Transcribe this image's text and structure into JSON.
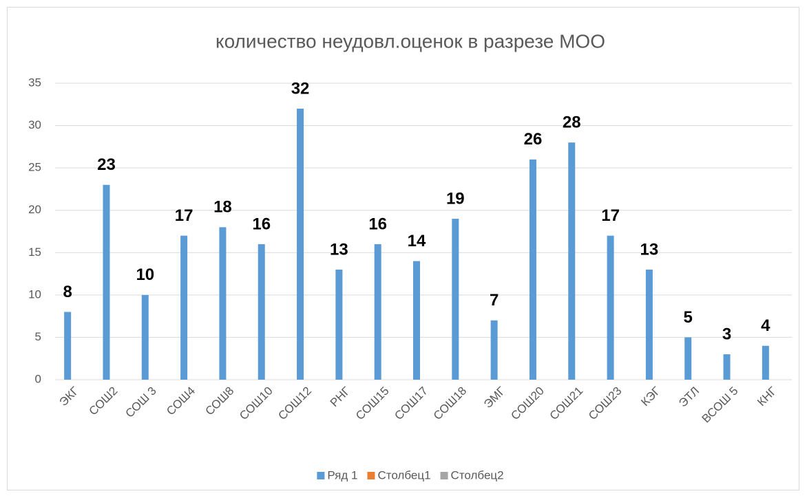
{
  "chart_data": {
    "type": "bar",
    "title": "количество неудовл.оценок в разрезе МОО",
    "categories": [
      "ЭКГ",
      "СОШ2",
      "СОШ 3",
      "СОШ4",
      "СОШ8",
      "СОШ10",
      "СОШ12",
      "РНГ",
      "СОШ15",
      "СОШ17",
      "СОШ18",
      "ЭМГ",
      "СОШ20",
      "СОШ21",
      "СОШ23",
      "КЭГ",
      "ЭТЛ",
      "ВСОШ 5",
      "КНГ"
    ],
    "series": [
      {
        "name": "Ряд 1",
        "color": "#5b9bd5",
        "values": [
          8,
          23,
          10,
          17,
          18,
          16,
          32,
          13,
          16,
          14,
          19,
          7,
          26,
          28,
          17,
          13,
          5,
          3,
          4
        ]
      },
      {
        "name": "Столбец1",
        "color": "#ed7d31",
        "values": [
          null,
          null,
          null,
          null,
          null,
          null,
          null,
          null,
          null,
          null,
          null,
          null,
          null,
          null,
          null,
          null,
          null,
          null,
          null
        ]
      },
      {
        "name": "Столбец2",
        "color": "#a5a5a5",
        "values": [
          null,
          null,
          null,
          null,
          null,
          null,
          null,
          null,
          null,
          null,
          null,
          null,
          null,
          null,
          null,
          null,
          null,
          null,
          null
        ]
      }
    ],
    "ylim": [
      0,
      35
    ],
    "yticks": [
      0,
      5,
      10,
      15,
      20,
      25,
      30,
      35
    ],
    "grid": true,
    "legend": "bottom"
  }
}
